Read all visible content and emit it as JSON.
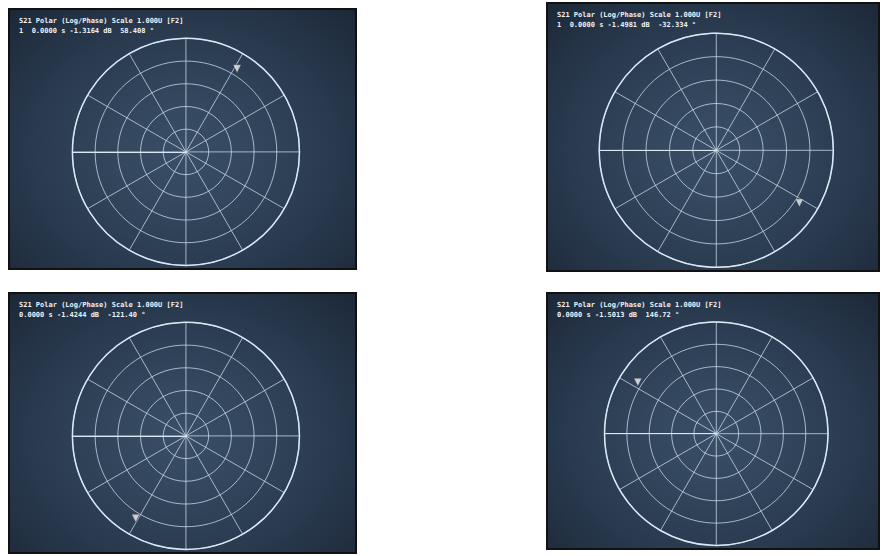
{
  "chart_data": [
    {
      "type": "polar",
      "title": "S21 Polar (Log/Phase) Scale 1.000U [F2]",
      "annotation": "1  0.0000 s -1.3164 dB  58.408 °",
      "rlim": [
        0,
        1
      ],
      "rticks": [
        0,
        0.2,
        0.4,
        0.6,
        0.8,
        1
      ],
      "xlim": [
        -180,
        180
      ],
      "xticks": [
        -180,
        -150,
        -120,
        -90,
        -60,
        -30,
        0,
        30,
        60,
        90,
        120,
        150,
        180
      ],
      "points": [
        {
          "r": 0.86,
          "angle": 58.408
        }
      ],
      "marker": "triangle",
      "color": "#f2f2f2",
      "grid": true,
      "tick_labels": false
    },
    {
      "type": "polar",
      "title": "S21 Polar (Log/Phase) Scale 1.000U [F2]",
      "annotation": "1  0.0000 s -1.4981 dB  -32.334 °",
      "rlim": [
        0,
        1
      ],
      "rticks": [
        0,
        0.2,
        0.4,
        0.6,
        0.8,
        1
      ],
      "xlim": [
        -180,
        180
      ],
      "xticks": [
        -180,
        -150,
        -120,
        -90,
        -60,
        -30,
        0,
        30,
        60,
        90,
        120,
        150,
        180
      ],
      "points": [
        {
          "r": 0.84,
          "angle": -32.334
        }
      ],
      "marker": "triangle",
      "color": "#f2f2f2",
      "grid": true,
      "tick_labels": false
    },
    {
      "type": "polar",
      "title": "S21 Polar (Log/Phase) Scale 1.000U [F2]",
      "annotation": "0.0000 s -1.4244 dB  -121.40 °",
      "rlim": [
        0,
        1
      ],
      "rticks": [
        0,
        0.2,
        0.4,
        0.6,
        0.8,
        1
      ],
      "xlim": [
        -180,
        180
      ],
      "xticks": [
        -180,
        -150,
        -120,
        -90,
        -60,
        -30,
        0,
        30,
        60,
        90,
        120,
        150,
        180
      ],
      "points": [
        {
          "r": 0.85,
          "angle": -121.4
        }
      ],
      "marker": "triangle",
      "color": "#f2f2f2",
      "grid": true,
      "tick_labels": false
    },
    {
      "type": "polar",
      "title": "S21 Polar (Log/Phase) Scale 1.000U [F2]",
      "annotation": "0.0000 s -1.5013 dB  146.72 °",
      "rlim": [
        0,
        1
      ],
      "rticks": [
        0,
        0.2,
        0.4,
        0.6,
        0.8,
        1
      ],
      "xlim": [
        -180,
        180
      ],
      "xticks": [
        -180,
        -150,
        -120,
        -90,
        -60,
        -30,
        0,
        30,
        60,
        90,
        120,
        150,
        180
      ],
      "points": [
        {
          "r": 0.84,
          "angle": 146.72
        }
      ],
      "marker": "triangle",
      "color": "#f2f2f2",
      "grid": true,
      "tick_labels": false
    }
  ]
}
